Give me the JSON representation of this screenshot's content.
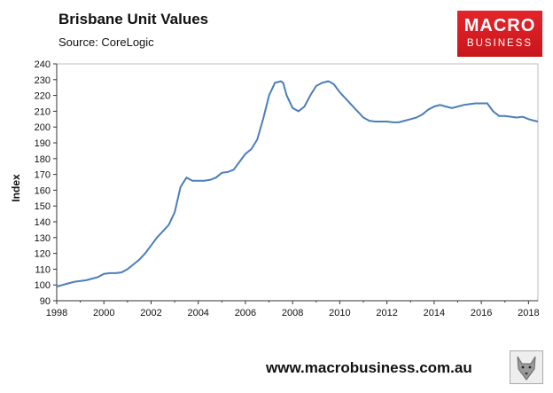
{
  "header": {
    "title": "Brisbane Unit Values",
    "source": "Source: CoreLogic"
  },
  "logo": {
    "line1": "MACRO",
    "line2": "BUSINESS",
    "color": "#d71920"
  },
  "footer": {
    "url": "www.macrobusiness.com.au"
  },
  "chart_data": {
    "type": "line",
    "title": "Brisbane Unit Values",
    "xlabel": "",
    "ylabel": "Index",
    "xlim": [
      1998,
      2018.4
    ],
    "ylim": [
      90,
      240
    ],
    "y_ticks": [
      90,
      100,
      110,
      120,
      130,
      140,
      150,
      160,
      170,
      180,
      190,
      200,
      210,
      220,
      230,
      240
    ],
    "x_ticks": [
      1998,
      2000,
      2002,
      2004,
      2006,
      2008,
      2010,
      2012,
      2014,
      2016,
      2018
    ],
    "grid": false,
    "line_color": "#4a7ebb",
    "series": [
      {
        "name": "Brisbane Unit Values",
        "x": [
          1998.0,
          1998.25,
          1998.5,
          1998.75,
          1999.0,
          1999.25,
          1999.5,
          1999.75,
          2000.0,
          2000.25,
          2000.5,
          2000.75,
          2001.0,
          2001.25,
          2001.5,
          2001.75,
          2002.0,
          2002.25,
          2002.5,
          2002.75,
          2003.0,
          2003.25,
          2003.5,
          2003.75,
          2004.0,
          2004.25,
          2004.5,
          2004.75,
          2005.0,
          2005.25,
          2005.5,
          2005.75,
          2006.0,
          2006.25,
          2006.5,
          2006.75,
          2007.0,
          2007.25,
          2007.5,
          2007.6,
          2007.75,
          2008.0,
          2008.25,
          2008.5,
          2008.75,
          2009.0,
          2009.25,
          2009.5,
          2009.6,
          2009.75,
          2010.0,
          2010.25,
          2010.5,
          2010.75,
          2011.0,
          2011.25,
          2011.5,
          2011.75,
          2012.0,
          2012.25,
          2012.5,
          2012.75,
          2013.0,
          2013.25,
          2013.5,
          2013.75,
          2014.0,
          2014.25,
          2014.5,
          2014.75,
          2015.0,
          2015.25,
          2015.5,
          2015.75,
          2016.0,
          2016.25,
          2016.5,
          2016.75,
          2017.0,
          2017.25,
          2017.5,
          2017.75,
          2018.0,
          2018.25,
          2018.4
        ],
        "values": [
          99,
          100,
          101,
          102,
          102.5,
          103,
          104,
          105,
          107,
          107.5,
          107.5,
          108,
          110,
          113,
          116,
          120,
          125,
          130,
          134,
          138,
          146,
          162,
          168,
          166,
          166,
          166,
          166.5,
          168,
          171,
          171.5,
          173,
          178,
          183,
          186,
          192,
          205,
          220,
          228,
          229,
          228,
          220,
          212,
          210,
          213,
          220,
          226,
          228,
          229,
          228.5,
          227,
          222,
          218,
          214,
          210,
          206,
          204,
          203.5,
          203.5,
          203.5,
          203,
          203,
          204,
          205,
          206,
          208,
          211,
          213,
          214,
          213,
          212,
          213,
          214,
          214.5,
          215,
          215,
          215,
          210,
          207,
          207,
          206.5,
          206,
          206.5,
          205,
          204,
          203.5
        ]
      }
    ]
  }
}
